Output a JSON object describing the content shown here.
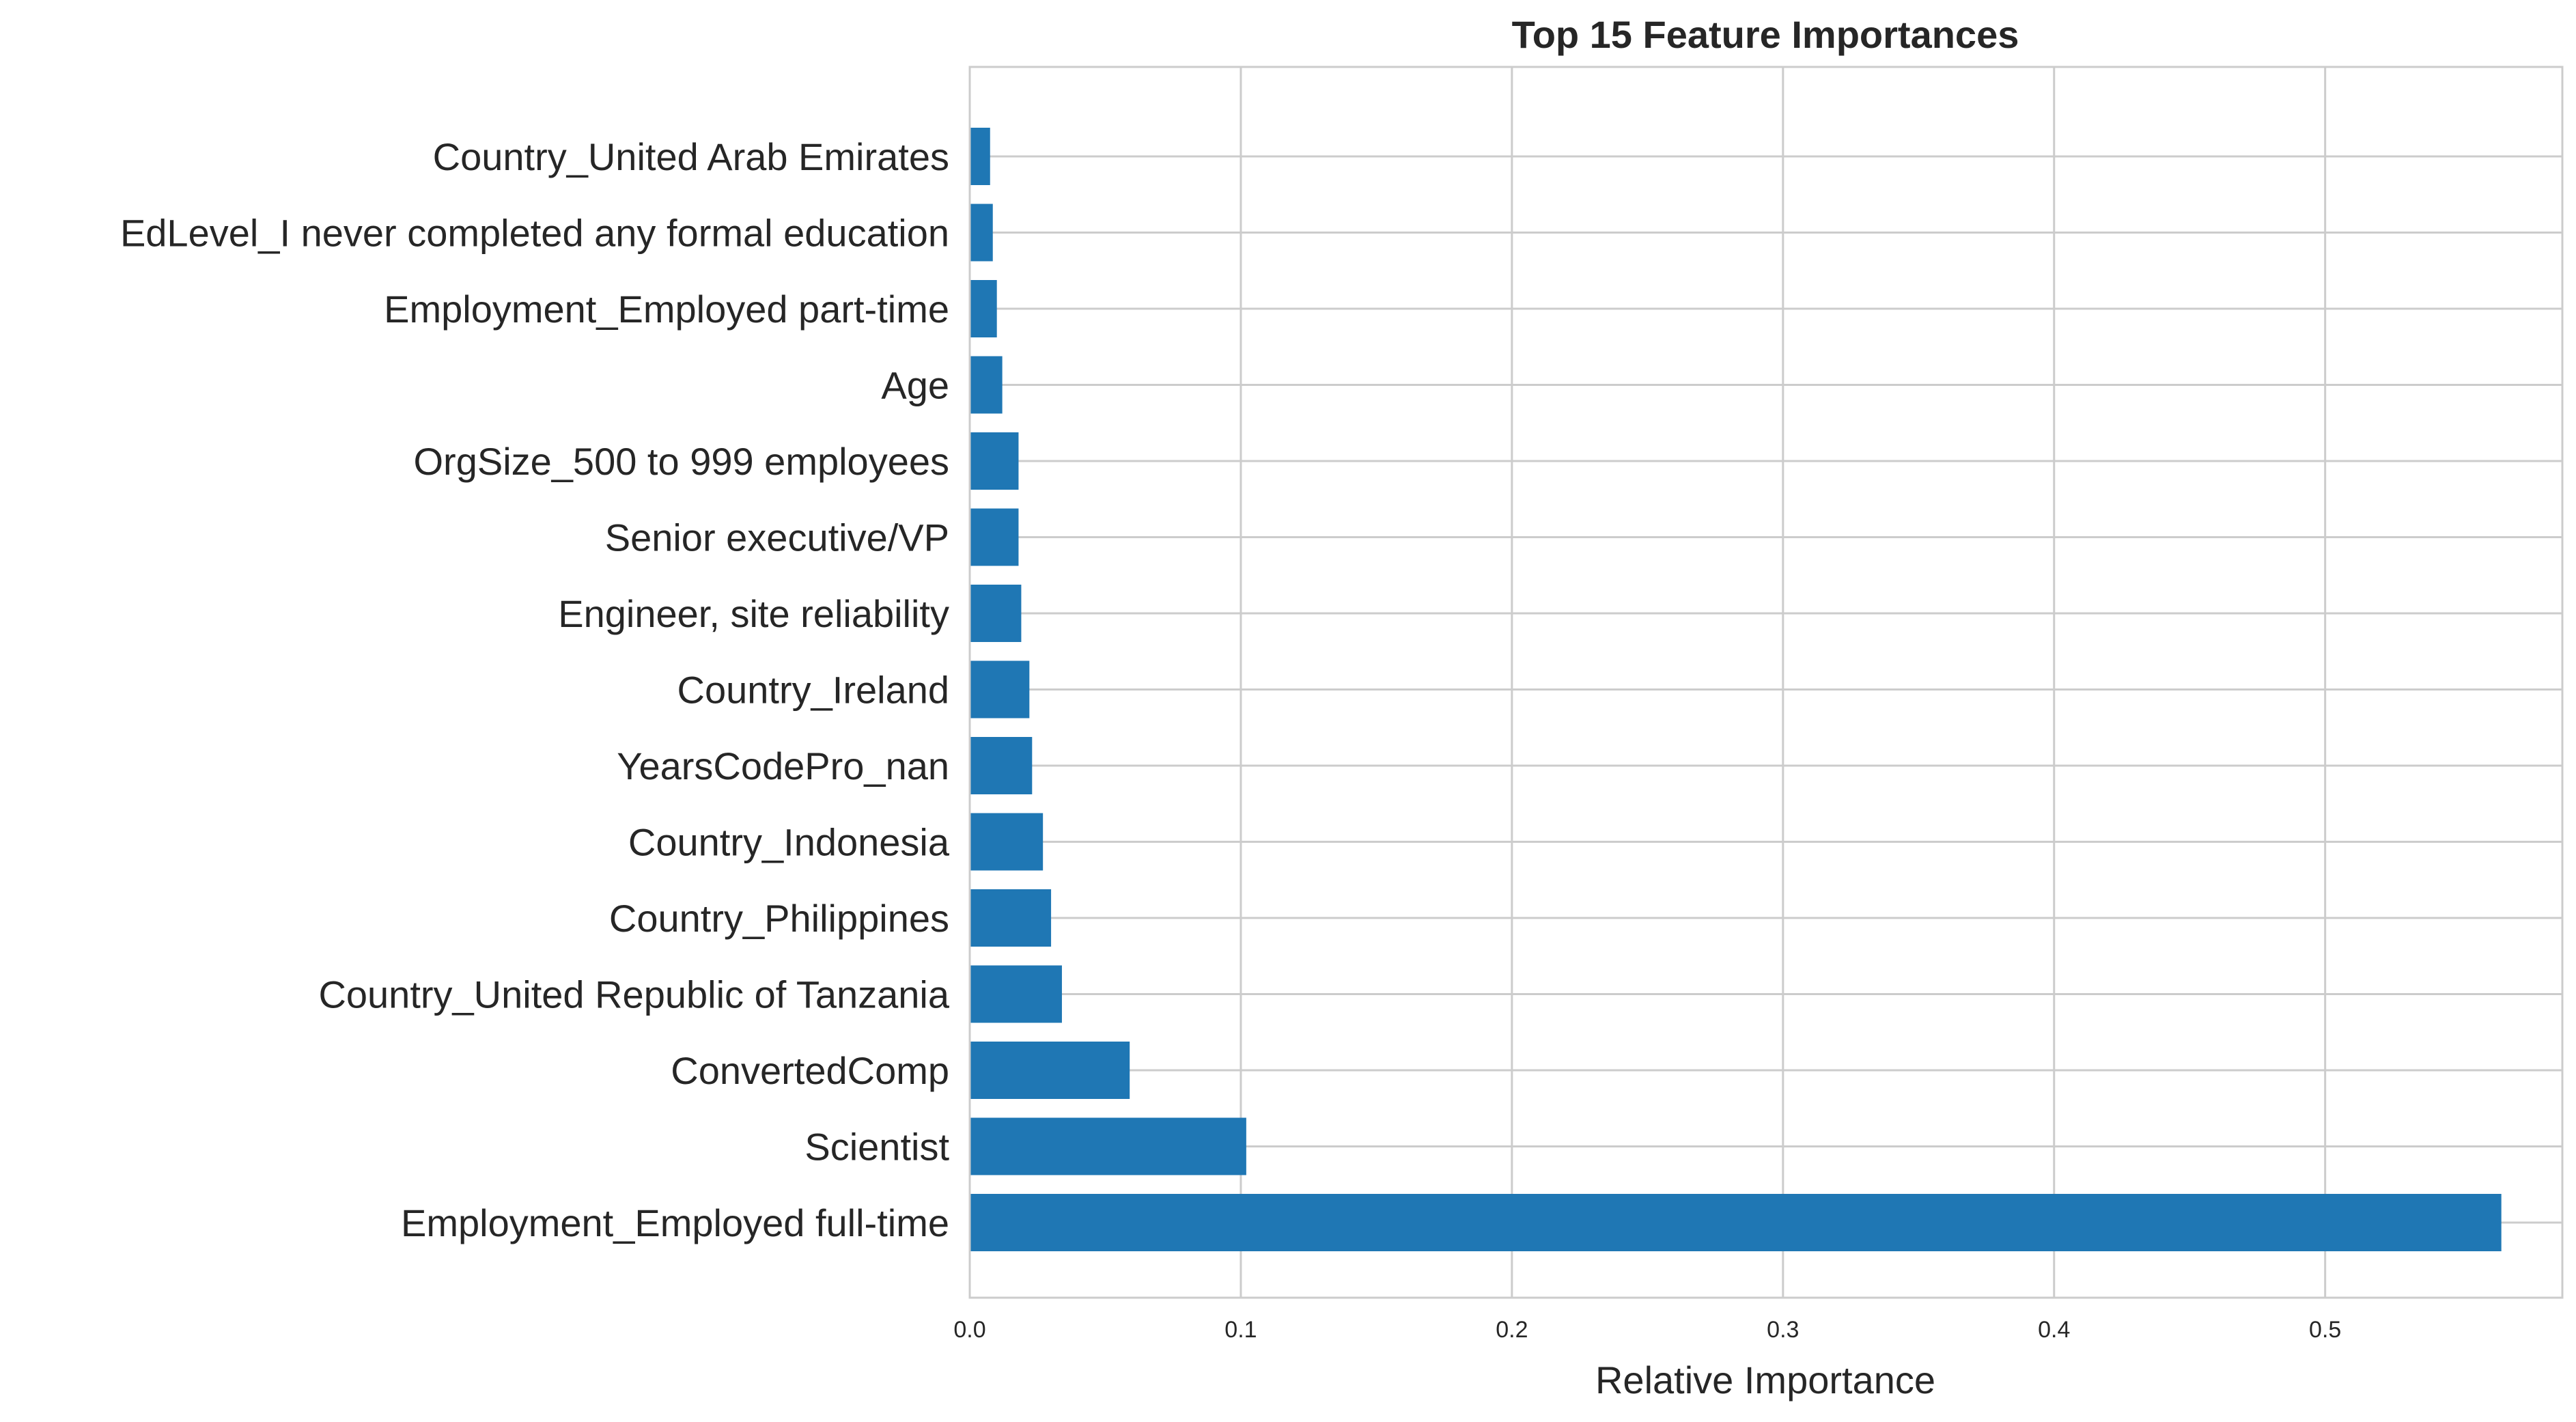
{
  "chart_data": {
    "type": "bar",
    "orientation": "horizontal",
    "title": "Top 15 Feature Importances",
    "xlabel": "Relative Importance",
    "ylabel": "",
    "xlim": [
      0,
      0.5875
    ],
    "xticks": [
      "0.0",
      "0.1",
      "0.2",
      "0.3",
      "0.4",
      "0.5"
    ],
    "grid": true,
    "categories": [
      "Employment_Employed full-time",
      "Scientist",
      "ConvertedComp",
      "Country_United Republic of Tanzania",
      "Country_Philippines",
      "Country_Indonesia",
      "YearsCodePro_nan",
      "Country_Ireland",
      "Engineer, site reliability",
      "Senior executive/VP",
      "OrgSize_500 to 999 employees",
      "Age",
      "Employment_Employed part-time",
      "EdLevel_I never completed any formal education",
      "Country_United Arab Emirates"
    ],
    "values": [
      0.565,
      0.102,
      0.059,
      0.034,
      0.03,
      0.027,
      0.023,
      0.022,
      0.019,
      0.018,
      0.018,
      0.012,
      0.01,
      0.0085,
      0.0075
    ],
    "bar_color": "#1f77b4",
    "grid_color": "#cccccc"
  }
}
